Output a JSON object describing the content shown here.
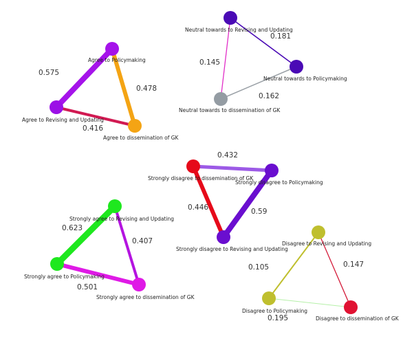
{
  "networks": [
    {
      "nodes": {
        "policy": {
          "label": "Agree to Policymaking",
          "color": "#a513ea"
        },
        "revise": {
          "label": "Agree to Revising and Updating",
          "color": "#9b10e6"
        },
        "dissem": {
          "label": "Agree to dissemination of GK",
          "color": "#f4a414"
        }
      },
      "edges": [
        {
          "from": "policy",
          "to": "revise",
          "weight": "0.575",
          "color": "#a513ea"
        },
        {
          "from": "policy",
          "to": "dissem",
          "weight": "0.478",
          "color": "#f4a414"
        },
        {
          "from": "revise",
          "to": "dissem",
          "weight": "0.416",
          "color": "#d11a52"
        }
      ]
    },
    {
      "nodes": {
        "revise": {
          "label": "Neutral towards to Revising and Updating",
          "color": "#4a0ab5"
        },
        "policy": {
          "label": "Neutral towards to Policymaking",
          "color": "#4a0ab5"
        },
        "dissem": {
          "label": "Neutral towards to dissemination of GK",
          "color": "#949ca3"
        }
      },
      "edges": [
        {
          "from": "revise",
          "to": "policy",
          "weight": "0.181",
          "color": "#4a0ab5"
        },
        {
          "from": "revise",
          "to": "dissem",
          "weight": "0.145",
          "color": "#e22ec8"
        },
        {
          "from": "policy",
          "to": "dissem",
          "weight": "0.162",
          "color": "#9aa0a6"
        }
      ]
    },
    {
      "nodes": {
        "dissem": {
          "label": "Strongly disagree to dissemination of GK",
          "color": "#e60a1a"
        },
        "policy": {
          "label": "Strongly disagree to Policymaking",
          "color": "#6a0ecf"
        },
        "revise": {
          "label": "Strongly disagree to Revising and Updating",
          "color": "#6a0ecf"
        }
      },
      "edges": [
        {
          "from": "dissem",
          "to": "policy",
          "weight": "0.432",
          "color": "#9c5ae6"
        },
        {
          "from": "dissem",
          "to": "revise",
          "weight": "0.446",
          "color": "#e60a1a"
        },
        {
          "from": "policy",
          "to": "revise",
          "weight": "0.59",
          "color": "#6a0ecf"
        }
      ]
    },
    {
      "nodes": {
        "revise": {
          "label": "Strongly agree to Revising and Updating",
          "color": "#1ee81e"
        },
        "policy": {
          "label": "Strongly agree to Policymaking",
          "color": "#1ee81e"
        },
        "dissem": {
          "label": "Strongly agree to dissemination of GK",
          "color": "#df1ae6"
        }
      },
      "edges": [
        {
          "from": "revise",
          "to": "policy",
          "weight": "0.623",
          "color": "#1ee81e"
        },
        {
          "from": "revise",
          "to": "dissem",
          "weight": "0.407",
          "color": "#b414e0"
        },
        {
          "from": "policy",
          "to": "dissem",
          "weight": "0.501",
          "color": "#df1ae6"
        }
      ]
    },
    {
      "nodes": {
        "revise": {
          "label": "Disagree to Revising and Updating",
          "color": "#bfbf2e"
        },
        "policy": {
          "label": "Disagree to Policymaking",
          "color": "#bfbf2e"
        },
        "dissem": {
          "label": "Disagree to dissemination of GK",
          "color": "#e01232"
        }
      },
      "edges": [
        {
          "from": "revise",
          "to": "policy",
          "weight": "0.105",
          "color": "#bfbf2e"
        },
        {
          "from": "revise",
          "to": "dissem",
          "weight": "0.147",
          "color": "#d41c3a"
        },
        {
          "from": "policy",
          "to": "dissem",
          "weight": "0.195",
          "color": "#b5f0a8"
        }
      ]
    }
  ]
}
